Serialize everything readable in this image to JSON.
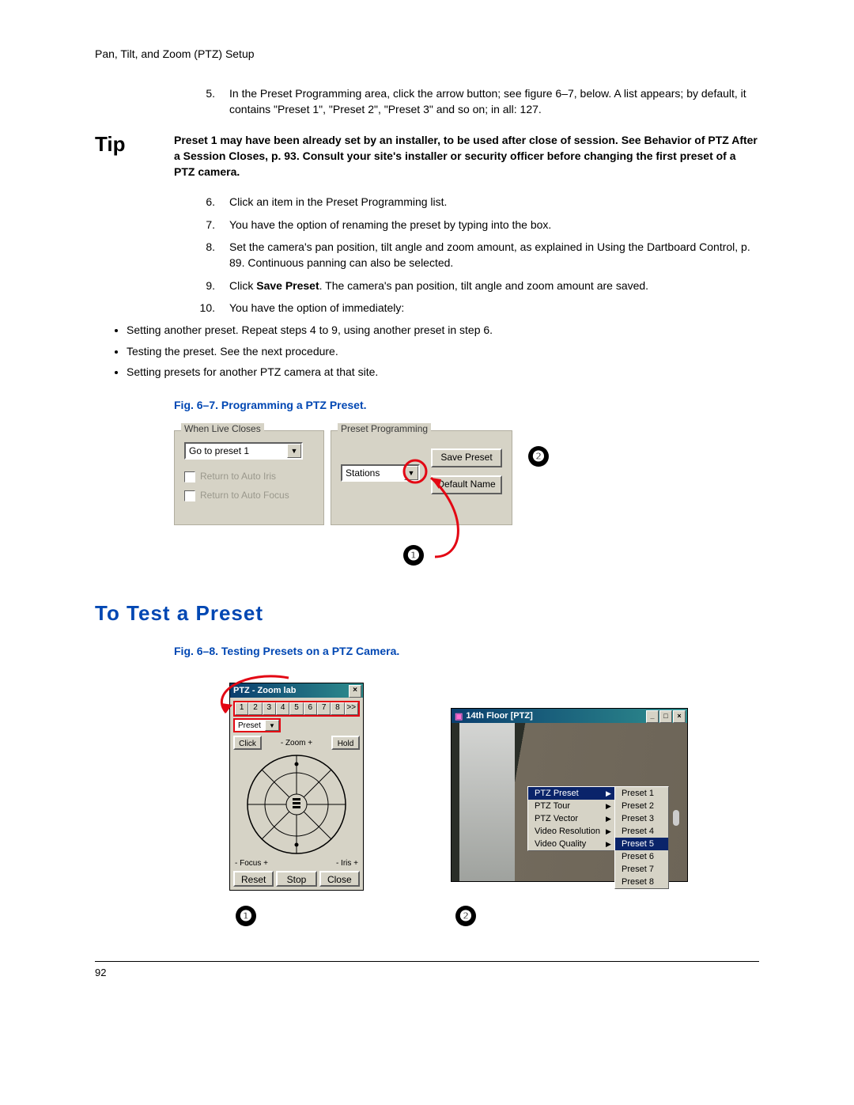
{
  "header": "Pan, Tilt, and Zoom (PTZ) Setup",
  "steps_a": [
    {
      "num": "5.",
      "text": "In the Preset Programming area, click the arrow button; see figure 6–7, below. A list appears; by default, it contains \"Preset 1\", \"Preset 2\", \"Preset 3\" and so on; in all: 127."
    }
  ],
  "tip": {
    "label": "Tip",
    "text": "Preset 1 may have been already set by an installer, to be used after close of session. See Behavior of PTZ After a Session Closes, p. 93. Consult your site's installer or security officer before changing the first preset of a PTZ camera."
  },
  "steps_b": [
    {
      "num": "6.",
      "text": "Click an item in the Preset Programming list."
    },
    {
      "num": "7.",
      "text": "You have the option of renaming the preset by typing into the box."
    },
    {
      "num": "8.",
      "text": "Set the camera's pan position, tilt angle and zoom amount, as explained in Using the Dartboard Control, p. 89. Continuous panning can also be selected."
    },
    {
      "num": "9.",
      "html": "Click <b>Save Preset</b>. The camera's pan position, tilt angle and zoom amount are saved."
    },
    {
      "num": "10.",
      "text": "You have the option of immediately:"
    }
  ],
  "sub_bullets": [
    "Setting another preset. Repeat steps 4 to 9, using another preset in step 6.",
    "Testing the preset. See the next procedure.",
    "Setting presets for another PTZ camera at that site."
  ],
  "fig67_caption": "Fig. 6–7.    Programming a PTZ Preset.",
  "fig67": {
    "gb1_title": "When Live Closes",
    "gb1_value": "Go to preset 1",
    "gb1_chk1": "Return to Auto Iris",
    "gb1_chk2": "Return to Auto Focus",
    "gb2_title": "Preset Programming",
    "gb2_value": "Stations",
    "btn_save": "Save Preset",
    "btn_default": "Default Name",
    "badge1": "❶",
    "badge2": "❷",
    "accent_red": "#e30613"
  },
  "section_h2": "To Test a Preset",
  "fig68_caption": "Fig. 6–8.    Testing Presets on a PTZ Camera.",
  "fig68": {
    "ptz_title": "PTZ - Zoom lab",
    "nums": [
      "1",
      "2",
      "3",
      "4",
      "5",
      "6",
      "7",
      "8",
      ">>"
    ],
    "preset_label": "Preset",
    "click_label": "Click",
    "zoom_label": "- Zoom +",
    "hold_label": "Hold",
    "focus_label": "- Focus +",
    "iris_label": "- Iris +",
    "reset": "Reset",
    "stop": "Stop",
    "close": "Close",
    "cam_title": "14th Floor [PTZ]",
    "menu1": [
      "PTZ Preset",
      "PTZ Tour",
      "PTZ Vector",
      "Video Resolution",
      "Video Quality"
    ],
    "menu1_sel": 0,
    "menu2": [
      "Preset 1",
      "Preset 2",
      "Preset 3",
      "Preset 4",
      "Preset 5",
      "Preset 6",
      "Preset 7",
      "Preset 8"
    ],
    "menu2_sel": 4,
    "badge1": "❶",
    "badge2": "❷"
  },
  "page_num": "92"
}
